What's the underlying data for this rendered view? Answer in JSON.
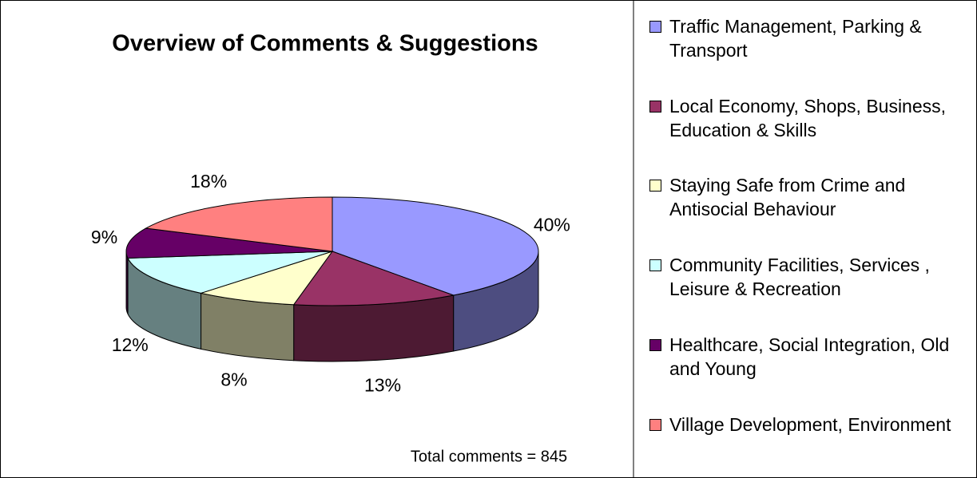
{
  "chart_data": {
    "type": "pie3d",
    "title": "Overview of Comments & Suggestions",
    "annotation": "Total comments = 845",
    "categories": [
      "Traffic Management, Parking & Transport",
      "Local Economy, Shops, Business, Education & Skills",
      "Staying Safe from Crime and Antisocial Behaviour",
      "Community Facilities, Services , Leisure & Recreation",
      "Healthcare, Social Integration, Old and Young",
      "Village Development, Environment"
    ],
    "values": [
      40,
      13,
      8,
      12,
      9,
      18
    ],
    "value_labels": [
      "40%",
      "13%",
      "8%",
      "12%",
      "9%",
      "18%"
    ],
    "colors": [
      "#9999ff",
      "#993366",
      "#ffffcc",
      "#ccffff",
      "#660066",
      "#ff8080"
    ],
    "legend": "right"
  }
}
